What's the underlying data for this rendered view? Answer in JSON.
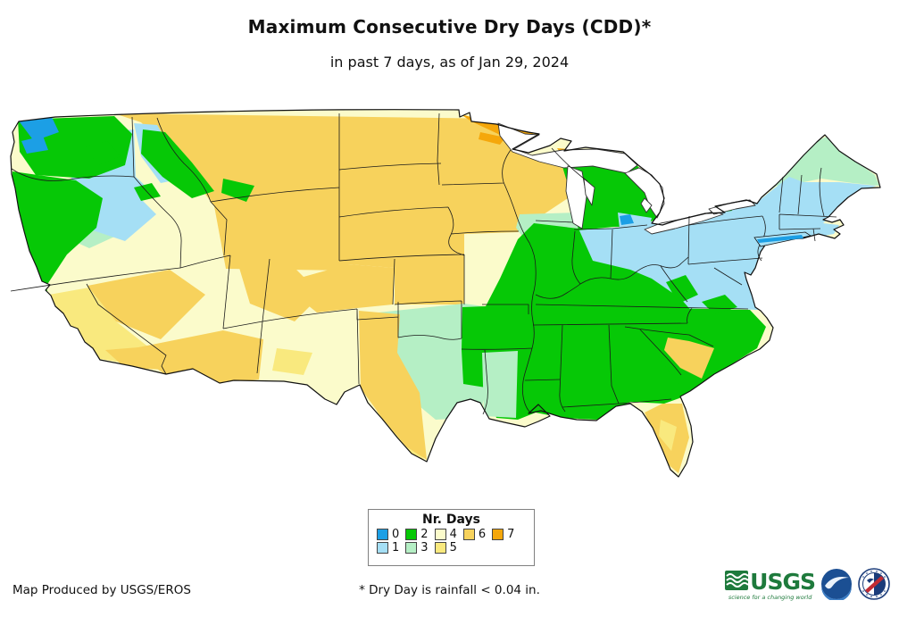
{
  "title": "Maximum Consecutive Dry Days (CDD)*",
  "subtitle": "in past 7 days, as of Jan 29, 2024",
  "legend": {
    "title": "Nr. Days",
    "rows": [
      [
        {
          "label": "0",
          "color_key": "c0"
        },
        {
          "label": "2",
          "color_key": "c2"
        },
        {
          "label": "4",
          "color_key": "c4"
        },
        {
          "label": "6",
          "color_key": "c6"
        },
        {
          "label": "7",
          "color_key": "c7"
        }
      ],
      [
        {
          "label": "1",
          "color_key": "c1"
        },
        {
          "label": "3",
          "color_key": "c3"
        },
        {
          "label": "5",
          "color_key": "c5"
        }
      ]
    ]
  },
  "palette": {
    "c0": "#1C9FE5",
    "c1": "#A5DFF5",
    "c2": "#06C806",
    "c3": "#B5EFC5",
    "c4": "#FBFBCB",
    "c5": "#F9E97E",
    "c6": "#F7D25C",
    "c7": "#F5A70B",
    "border": "#1a1a1a",
    "outline": "#111111",
    "lake": "#ffffff"
  },
  "footer": {
    "credit": "Map Produced by USGS/EROS",
    "note": "* Dry Day is rainfall < 0.04 in."
  },
  "logos": {
    "usgs_text": "USGS",
    "usgs_tagline": "science for a changing world"
  }
}
